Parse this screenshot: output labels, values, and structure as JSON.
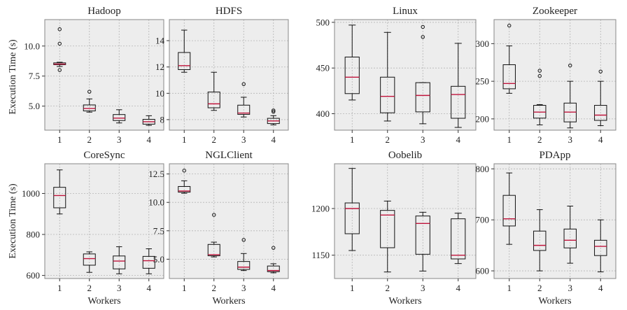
{
  "figure": {
    "shared_ylabel": "Execution Time (s)",
    "shared_xlabel": "Workers"
  },
  "style": {
    "panel_bg": "#ededed",
    "grid_color": "#b5b5b5",
    "box_color": "#111111",
    "median_color": "#c0143c",
    "frame_color": "#888888"
  },
  "chart_data": [
    {
      "type": "boxplot",
      "title": "Hadoop",
      "xlabel": "",
      "ylabel": "Execution Time (s)",
      "categories": [
        "1",
        "2",
        "3",
        "4"
      ],
      "ylim": [
        3.0,
        12.2
      ],
      "yticks": [
        5.0,
        7.5,
        10.0
      ],
      "ytick_labels": [
        "5.0",
        "7.5",
        "10.0"
      ],
      "grid": true,
      "boxes": [
        {
          "whislo": 8.3,
          "q1": 8.45,
          "med": 8.5,
          "q3": 8.6,
          "whishi": 8.65,
          "fliers": [
            11.4,
            10.2,
            8.0
          ]
        },
        {
          "whislo": 4.5,
          "q1": 4.6,
          "med": 4.8,
          "q3": 5.1,
          "whishi": 5.6,
          "fliers": [
            6.2
          ]
        },
        {
          "whislo": 3.6,
          "q1": 3.8,
          "med": 4.0,
          "q3": 4.3,
          "whishi": 4.7,
          "fliers": []
        },
        {
          "whislo": 3.4,
          "q1": 3.5,
          "med": 3.7,
          "q3": 3.9,
          "whishi": 4.2,
          "fliers": []
        }
      ]
    },
    {
      "type": "boxplot",
      "title": "HDFS",
      "xlabel": "",
      "ylabel": "",
      "categories": [
        "1",
        "2",
        "3",
        "4"
      ],
      "ylim": [
        7.2,
        15.6
      ],
      "yticks": [
        8,
        10,
        12,
        14
      ],
      "ytick_labels": [
        "8",
        "10",
        "12",
        "14"
      ],
      "grid": true,
      "boxes": [
        {
          "whislo": 11.6,
          "q1": 11.8,
          "med": 12.1,
          "q3": 13.1,
          "whishi": 14.8,
          "fliers": []
        },
        {
          "whislo": 8.7,
          "q1": 8.9,
          "med": 9.2,
          "q3": 10.1,
          "whishi": 11.6,
          "fliers": []
        },
        {
          "whislo": 8.2,
          "q1": 8.4,
          "med": 8.5,
          "q3": 9.1,
          "whishi": 9.7,
          "fliers": [
            10.7
          ]
        },
        {
          "whislo": 7.6,
          "q1": 7.7,
          "med": 7.9,
          "q3": 8.1,
          "whishi": 8.3,
          "fliers": [
            8.6,
            8.7
          ]
        }
      ]
    },
    {
      "type": "boxplot",
      "title": "Linux",
      "xlabel": "",
      "ylabel": "",
      "categories": [
        "1",
        "2",
        "3",
        "4"
      ],
      "ylim": [
        382,
        503
      ],
      "yticks": [
        400,
        450,
        500
      ],
      "ytick_labels": [
        "400",
        "450",
        "500"
      ],
      "grid": true,
      "boxes": [
        {
          "whislo": 415,
          "q1": 422,
          "med": 440,
          "q3": 462,
          "whishi": 497,
          "fliers": []
        },
        {
          "whislo": 392,
          "q1": 401,
          "med": 419,
          "q3": 440,
          "whishi": 489,
          "fliers": []
        },
        {
          "whislo": 389,
          "q1": 402,
          "med": 420,
          "q3": 434,
          "whishi": 434,
          "fliers": [
            484,
            495
          ]
        },
        {
          "whislo": 385,
          "q1": 395,
          "med": 421,
          "q3": 430,
          "whishi": 477,
          "fliers": []
        }
      ]
    },
    {
      "type": "boxplot",
      "title": "Zookeeper",
      "xlabel": "",
      "ylabel": "",
      "categories": [
        "1",
        "2",
        "3",
        "4"
      ],
      "ylim": [
        185,
        332
      ],
      "yticks": [
        200,
        250,
        300
      ],
      "ytick_labels": [
        "200",
        "250",
        "300"
      ],
      "grid": true,
      "boxes": [
        {
          "whislo": 234,
          "q1": 240,
          "med": 247,
          "q3": 272,
          "whishi": 297,
          "fliers": [
            324
          ]
        },
        {
          "whislo": 192,
          "q1": 201,
          "med": 209,
          "q3": 218,
          "whishi": 219,
          "fliers": [
            257,
            264
          ]
        },
        {
          "whislo": 188,
          "q1": 196,
          "med": 209,
          "q3": 221,
          "whishi": 250,
          "fliers": [
            271
          ]
        },
        {
          "whislo": 191,
          "q1": 198,
          "med": 205,
          "q3": 218,
          "whishi": 250,
          "fliers": [
            263
          ]
        }
      ]
    },
    {
      "type": "boxplot",
      "title": "CoreSync",
      "xlabel": "Workers",
      "ylabel": "Execution Time (s)",
      "categories": [
        "1",
        "2",
        "3",
        "4"
      ],
      "ylim": [
        585,
        1145
      ],
      "yticks": [
        600,
        800,
        1000
      ],
      "ytick_labels": [
        "600",
        "800",
        "1000"
      ],
      "grid": true,
      "boxes": [
        {
          "whislo": 900,
          "q1": 930,
          "med": 990,
          "q3": 1030,
          "whishi": 1115,
          "fliers": []
        },
        {
          "whislo": 615,
          "q1": 650,
          "med": 682,
          "q3": 705,
          "whishi": 715,
          "fliers": []
        },
        {
          "whislo": 608,
          "q1": 632,
          "med": 670,
          "q3": 695,
          "whishi": 740,
          "fliers": []
        },
        {
          "whislo": 608,
          "q1": 635,
          "med": 672,
          "q3": 693,
          "whishi": 730,
          "fliers": []
        }
      ]
    },
    {
      "type": "boxplot",
      "title": "NGLClient",
      "xlabel": "Workers",
      "ylabel": "",
      "categories": [
        "1",
        "2",
        "3",
        "4"
      ],
      "ylim": [
        3.3,
        13.4
      ],
      "yticks": [
        5.0,
        7.5,
        10.0,
        12.5
      ],
      "ytick_labels": [
        "5.0",
        "7.5",
        "10.0",
        "12.5"
      ],
      "grid": true,
      "boxes": [
        {
          "whislo": 10.8,
          "q1": 10.9,
          "med": 11.0,
          "q3": 11.4,
          "whishi": 11.9,
          "fliers": [
            12.8
          ]
        },
        {
          "whislo": 5.2,
          "q1": 5.3,
          "med": 5.4,
          "q3": 6.3,
          "whishi": 6.5,
          "fliers": [
            8.9
          ]
        },
        {
          "whislo": 4.0,
          "q1": 4.1,
          "med": 4.3,
          "q3": 4.8,
          "whishi": 5.5,
          "fliers": [
            6.7
          ]
        },
        {
          "whislo": 3.8,
          "q1": 3.9,
          "med": 4.0,
          "q3": 4.4,
          "whishi": 4.6,
          "fliers": [
            6.0
          ]
        }
      ]
    },
    {
      "type": "boxplot",
      "title": "Oobelib",
      "xlabel": "Workers",
      "ylabel": "",
      "categories": [
        "1",
        "2",
        "3",
        "4"
      ],
      "ylim": [
        1125,
        1248
      ],
      "yticks": [
        1150,
        1200
      ],
      "ytick_labels": [
        "1150",
        "1200"
      ],
      "grid": true,
      "boxes": [
        {
          "whislo": 1155,
          "q1": 1173,
          "med": 1200,
          "q3": 1206,
          "whishi": 1243,
          "fliers": []
        },
        {
          "whislo": 1132,
          "q1": 1158,
          "med": 1193,
          "q3": 1198,
          "whishi": 1208,
          "fliers": []
        },
        {
          "whislo": 1133,
          "q1": 1151,
          "med": 1184,
          "q3": 1192,
          "whishi": 1196,
          "fliers": []
        },
        {
          "whislo": 1141,
          "q1": 1146,
          "med": 1150,
          "q3": 1189,
          "whishi": 1195,
          "fliers": []
        }
      ]
    },
    {
      "type": "boxplot",
      "title": "PDApp",
      "xlabel": "Workers",
      "ylabel": "",
      "categories": [
        "1",
        "2",
        "3",
        "4"
      ],
      "ylim": [
        585,
        810
      ],
      "yticks": [
        600,
        700,
        800
      ],
      "ytick_labels": [
        "600",
        "700",
        "800"
      ],
      "grid": true,
      "boxes": [
        {
          "whislo": 652,
          "q1": 688,
          "med": 702,
          "q3": 748,
          "whishi": 792,
          "fliers": []
        },
        {
          "whislo": 600,
          "q1": 640,
          "med": 650,
          "q3": 678,
          "whishi": 720,
          "fliers": []
        },
        {
          "whislo": 615,
          "q1": 645,
          "med": 660,
          "q3": 682,
          "whishi": 727,
          "fliers": []
        },
        {
          "whislo": 598,
          "q1": 630,
          "med": 648,
          "q3": 660,
          "whishi": 700,
          "fliers": []
        }
      ]
    }
  ]
}
